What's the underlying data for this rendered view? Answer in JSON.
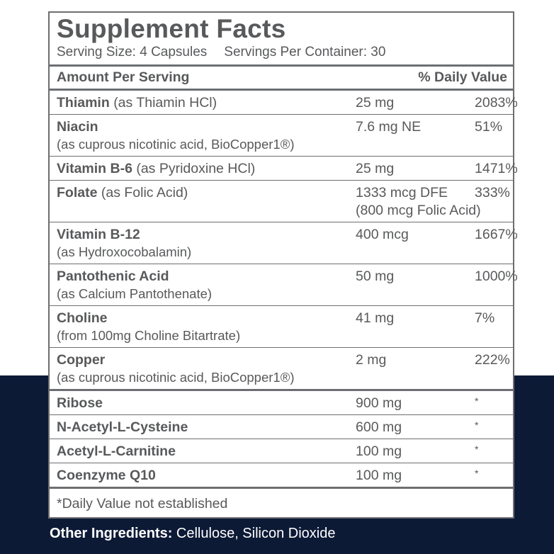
{
  "header": {
    "title": "Supplement Facts",
    "serving_size": "Serving Size: 4 Capsules",
    "servings_per_container": "Servings Per Container: 30"
  },
  "table": {
    "columns": [
      "Amount Per Serving",
      "% Daily Value"
    ],
    "rows": [
      {
        "name": "Thiamin",
        "note": "(as Thiamin HCl)",
        "amount": [
          "25 mg"
        ],
        "dv": "2083%"
      },
      {
        "name": "Niacin",
        "note": "(as cuprous nicotinic acid, BioCopper1®)",
        "amount": [
          "7.6 mg NE"
        ],
        "dv": "51%"
      },
      {
        "name": "Vitamin B-6",
        "note": "(as Pyridoxine HCl)",
        "amount": [
          "25 mg"
        ],
        "dv": "1471%"
      },
      {
        "name": "Folate",
        "note": "(as Folic Acid)",
        "amount": [
          "1333 mcg DFE",
          "(800 mcg Folic Acid)"
        ],
        "dv": "333%"
      },
      {
        "name": "Vitamin B-12",
        "note": "(as Hydroxocobalamin)",
        "amount": [
          "400 mcg"
        ],
        "dv": "1667%"
      },
      {
        "name": "Pantothenic Acid",
        "note": "(as Calcium Pantothenate)",
        "amount": [
          "50 mg"
        ],
        "dv": "1000%"
      },
      {
        "name": "Choline",
        "note": "(from 100mg Choline Bitartrate)",
        "amount": [
          "41 mg"
        ],
        "dv": "7%"
      },
      {
        "name": "Copper",
        "note": "(as cuprous nicotinic acid, BioCopper1®)",
        "amount": [
          "2 mg"
        ],
        "dv": "222%"
      },
      {
        "name": "Ribose",
        "amount": [
          "900 mg"
        ],
        "dv": "*"
      },
      {
        "name": "N-Acetyl-L-Cysteine",
        "amount": [
          "600 mg"
        ],
        "dv": "*"
      },
      {
        "name": "Acetyl-L-Carnitine",
        "amount": [
          "100 mg"
        ],
        "dv": "*"
      },
      {
        "name": "Coenzyme Q10",
        "amount": [
          "100 mg"
        ],
        "dv": "*"
      }
    ]
  },
  "footnote": "*Daily Value not established",
  "other_ingredients": {
    "label": "Other Ingredients:",
    "text": "Cellulose, Silicon Dioxide"
  }
}
